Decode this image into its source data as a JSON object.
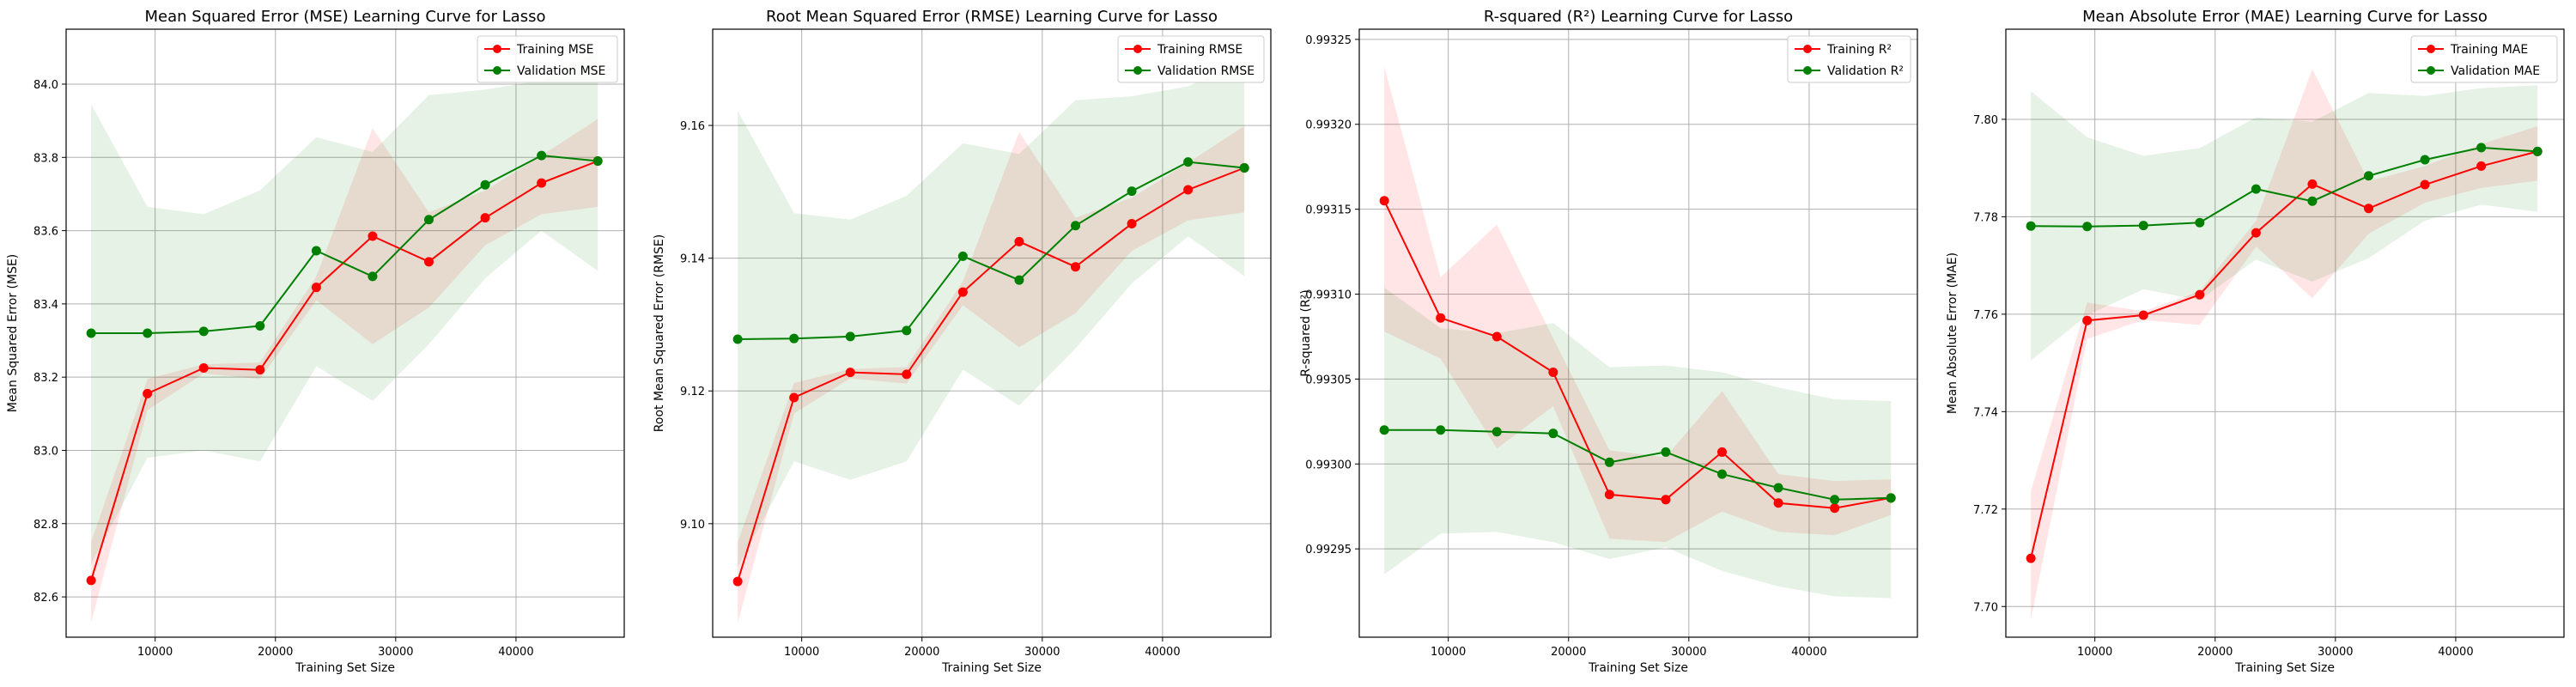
{
  "colors": {
    "train": "#ff0000",
    "validation": "#008000",
    "grid": "#b0b0b0",
    "axes": "#000000"
  },
  "chart_data": [
    {
      "type": "line",
      "title": "Mean Squared Error (MSE) Learning Curve for Lasso",
      "xlabel": "Training Set Size",
      "ylabel": "Mean Squared Error (MSE)",
      "xlim": [
        2600,
        49000
      ],
      "ylim": [
        82.49,
        84.15
      ],
      "xticks": [
        10000,
        20000,
        30000,
        40000
      ],
      "yticks": [
        82.6,
        82.8,
        83.0,
        83.2,
        83.4,
        83.6,
        83.8,
        84.0
      ],
      "tick_decimals": 1,
      "grid": true,
      "legend_position": "top-right",
      "x": [
        4680,
        9360,
        14040,
        18720,
        23400,
        28080,
        32760,
        37440,
        42120,
        46800
      ],
      "series": [
        {
          "name": "Training MSE",
          "color": "#ff0000",
          "values": [
            82.645,
            83.155,
            83.225,
            83.22,
            83.445,
            83.585,
            83.515,
            83.635,
            83.73,
            83.79
          ],
          "band_low": [
            82.53,
            83.11,
            83.21,
            83.195,
            83.41,
            83.29,
            83.39,
            83.56,
            83.645,
            83.665
          ],
          "band_high": [
            82.75,
            83.195,
            83.235,
            83.24,
            83.475,
            83.88,
            83.65,
            83.71,
            83.805,
            83.905
          ]
        },
        {
          "name": "Validation MSE",
          "color": "#008000",
          "values": [
            83.32,
            83.32,
            83.325,
            83.34,
            83.545,
            83.475,
            83.63,
            83.725,
            83.805,
            83.79
          ],
          "band_low": [
            82.69,
            82.98,
            83.0,
            82.97,
            83.23,
            83.135,
            83.29,
            83.47,
            83.6,
            83.49
          ],
          "band_high": [
            83.945,
            83.665,
            83.645,
            83.71,
            83.855,
            83.815,
            83.97,
            83.985,
            84.01,
            84.09
          ]
        }
      ]
    },
    {
      "type": "line",
      "title": "Root Mean Squared Error (RMSE) Learning Curve for Lasso",
      "xlabel": "Training Set Size",
      "ylabel": "Root Mean Squared Error (RMSE)",
      "xlim": [
        2600,
        49000
      ],
      "ylim": [
        9.0829,
        9.1745
      ],
      "xticks": [
        10000,
        20000,
        30000,
        40000
      ],
      "yticks": [
        9.1,
        9.12,
        9.14,
        9.16
      ],
      "tick_decimals": 2,
      "grid": true,
      "legend_position": "top-right",
      "x": [
        4680,
        9360,
        14040,
        18720,
        23400,
        28080,
        32760,
        37440,
        42120,
        46800
      ],
      "series": [
        {
          "name": "Training RMSE",
          "color": "#ff0000",
          "values": [
            9.0913,
            9.119,
            9.1228,
            9.1225,
            9.1349,
            9.1425,
            9.1387,
            9.1452,
            9.1503,
            9.1536
          ],
          "band_low": [
            9.085,
            9.1166,
            9.1219,
            9.1211,
            9.1329,
            9.1266,
            9.1317,
            9.1411,
            9.1457,
            9.1469
          ],
          "band_high": [
            9.0972,
            9.1212,
            9.1233,
            9.1236,
            9.1365,
            9.159,
            9.1461,
            9.1491,
            9.1544,
            9.1599
          ]
        },
        {
          "name": "Validation RMSE",
          "color": "#008000",
          "values": [
            9.1278,
            9.1279,
            9.1282,
            9.1291,
            9.1403,
            9.1367,
            9.1449,
            9.1501,
            9.1545,
            9.1536
          ],
          "band_low": [
            9.0934,
            9.1094,
            9.1066,
            9.1094,
            9.1232,
            9.1178,
            9.1264,
            9.1362,
            9.1433,
            9.1373
          ],
          "band_high": [
            9.1622,
            9.1468,
            9.1458,
            9.1494,
            9.1573,
            9.1557,
            9.1638,
            9.1644,
            9.1659,
            9.1699
          ]
        }
      ]
    },
    {
      "type": "line",
      "title": "R-squared (R²) Learning Curve for Lasso",
      "xlabel": "Training Set Size",
      "ylabel": "R-squared (R²)",
      "xlim": [
        2600,
        49000
      ],
      "ylim": [
        0.992898,
        0.993256
      ],
      "xticks": [
        10000,
        20000,
        30000,
        40000
      ],
      "yticks": [
        0.99295,
        0.993,
        0.99305,
        0.9931,
        0.99315,
        0.9932,
        0.99325
      ],
      "tick_decimals": 5,
      "grid": true,
      "legend_position": "top-right",
      "x": [
        4680,
        9360,
        14040,
        18720,
        23400,
        28080,
        32760,
        37440,
        42120,
        46800
      ],
      "series": [
        {
          "name": "Training R²",
          "color": "#ff0000",
          "values": [
            0.993155,
            0.993086,
            0.993075,
            0.993054,
            0.992982,
            0.992979,
            0.993007,
            0.992977,
            0.992974,
            0.99298
          ],
          "band_low": [
            0.993078,
            0.993062,
            0.993009,
            0.993034,
            0.992956,
            0.992954,
            0.992972,
            0.99296,
            0.992958,
            0.99297
          ],
          "band_high": [
            0.993234,
            0.99311,
            0.993141,
            0.993074,
            0.993008,
            0.993004,
            0.993043,
            0.992994,
            0.99299,
            0.992991
          ]
        },
        {
          "name": "Validation R²",
          "color": "#008000",
          "values": [
            0.99302,
            0.99302,
            0.993019,
            0.993018,
            0.993001,
            0.993007,
            0.992994,
            0.992986,
            0.992979,
            0.99298
          ],
          "band_low": [
            0.992935,
            0.992959,
            0.99296,
            0.992954,
            0.992944,
            0.992951,
            0.992937,
            0.992928,
            0.992922,
            0.992921
          ],
          "band_high": [
            0.993104,
            0.99308,
            0.993077,
            0.993083,
            0.993057,
            0.993058,
            0.993054,
            0.993045,
            0.993038,
            0.993037
          ]
        }
      ]
    },
    {
      "type": "line",
      "title": "Mean Absolute Error (MAE) Learning Curve for Lasso",
      "xlabel": "Training Set Size",
      "ylabel": "Mean Absolute Error (MAE)",
      "xlim": [
        2600,
        49000
      ],
      "ylim": [
        7.6937,
        7.8185
      ],
      "xticks": [
        10000,
        20000,
        30000,
        40000
      ],
      "yticks": [
        7.7,
        7.72,
        7.74,
        7.76,
        7.78,
        7.8
      ],
      "tick_decimals": 2,
      "grid": true,
      "legend_position": "top-right",
      "x": [
        4680,
        9360,
        14040,
        18720,
        23400,
        28080,
        32760,
        37440,
        42120,
        46800
      ],
      "series": [
        {
          "name": "Training MAE",
          "color": "#ff0000",
          "values": [
            7.7099,
            7.7587,
            7.7598,
            7.764,
            7.7767,
            7.7867,
            7.7817,
            7.7866,
            7.7904,
            7.7934
          ],
          "band_low": [
            7.6972,
            7.7549,
            7.7588,
            7.7578,
            7.7739,
            7.7633,
            7.7765,
            7.7829,
            7.7859,
            7.7874
          ],
          "band_high": [
            7.7237,
            7.7624,
            7.7606,
            7.7647,
            7.7792,
            7.8103,
            7.7873,
            7.7904,
            7.7949,
            7.7986
          ]
        },
        {
          "name": "Validation MAE",
          "color": "#008000",
          "values": [
            7.7781,
            7.778,
            7.7782,
            7.7788,
            7.7857,
            7.7832,
            7.7884,
            7.7917,
            7.7942,
            7.7934
          ],
          "band_low": [
            7.7505,
            7.7598,
            7.7651,
            7.7629,
            7.7712,
            7.7667,
            7.7715,
            7.7792,
            7.7825,
            7.781
          ],
          "band_high": [
            7.8058,
            7.7963,
            7.7925,
            7.7941,
            7.8004,
            7.7995,
            7.8054,
            7.8048,
            7.8064,
            7.807
          ]
        }
      ]
    }
  ]
}
